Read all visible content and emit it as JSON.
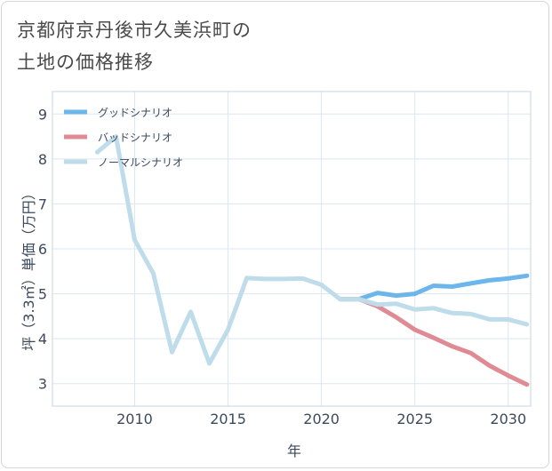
{
  "chart_data": {
    "type": "line",
    "title": [
      "京都府京丹後市久美浜町の",
      "土地の価格推移"
    ],
    "xlabel": "年",
    "ylabel": "坪（3.3㎡）単価（万円）",
    "xlim": [
      2005.6,
      2031.2
    ],
    "ylim": [
      2.5,
      9.5
    ],
    "xticks": [
      2010,
      2015,
      2020,
      2025,
      2030
    ],
    "yticks": [
      3,
      4,
      5,
      6,
      7,
      8,
      9
    ],
    "grid": true,
    "legend_position": "top-left",
    "series": [
      {
        "name": "グッドシナリオ",
        "color": "#6cb6ec",
        "x": [
          2021,
          2022,
          2023,
          2024,
          2025,
          2026,
          2027,
          2028,
          2029,
          2030,
          2031
        ],
        "values": [
          4.88,
          4.88,
          5.02,
          4.96,
          5.0,
          5.18,
          5.16,
          5.23,
          5.3,
          5.34,
          5.4
        ]
      },
      {
        "name": "バッドシナリオ",
        "color": "#e08a93",
        "x": [
          2021,
          2022,
          2023,
          2024,
          2025,
          2026,
          2027,
          2028,
          2029,
          2030,
          2031
        ],
        "values": [
          4.88,
          4.88,
          4.72,
          4.48,
          4.2,
          4.02,
          3.83,
          3.68,
          3.4,
          3.18,
          2.98
        ]
      },
      {
        "name": "ノーマルシナリオ",
        "color": "#bfdcea",
        "x": [
          2008,
          2009,
          2010,
          2011,
          2012,
          2013,
          2014,
          2015,
          2016,
          2017,
          2018,
          2019,
          2020,
          2021,
          2022,
          2023,
          2024,
          2025,
          2026,
          2027,
          2028,
          2029,
          2030,
          2031
        ],
        "values": [
          8.15,
          8.5,
          6.2,
          5.45,
          3.7,
          4.6,
          3.45,
          4.2,
          5.35,
          5.33,
          5.33,
          5.34,
          5.2,
          4.88,
          4.88,
          4.76,
          4.78,
          4.65,
          4.68,
          4.57,
          4.55,
          4.43,
          4.43,
          4.32
        ]
      }
    ]
  }
}
